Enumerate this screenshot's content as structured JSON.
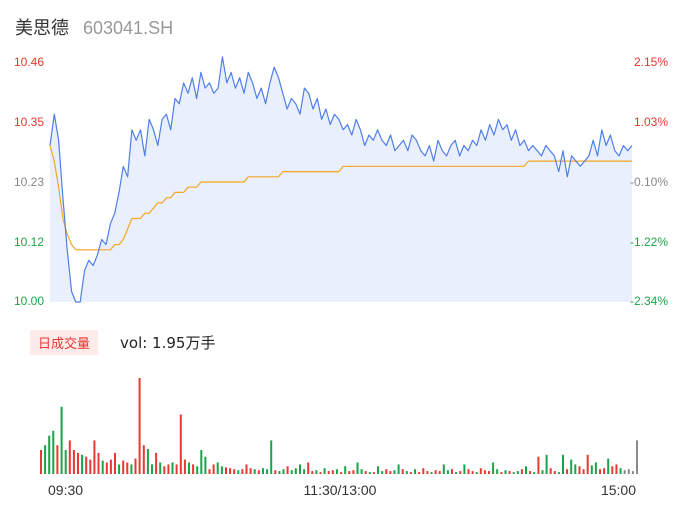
{
  "header": {
    "name": "美思德",
    "code": "603041.SH"
  },
  "volume_panel": {
    "badge": "日成交量",
    "vol_text": "vol: 1.95万手"
  },
  "colors": {
    "price_line": "#4f7fe8",
    "avg_line": "#f5a623",
    "up": "#e8382f",
    "down": "#1aa34a",
    "neutral": "#888888",
    "fill": "#e9effc"
  },
  "chart_data": [
    {
      "type": "line",
      "title": "",
      "y_ticks": [
        "10.46",
        "10.35",
        "10.23",
        "10.12",
        "10.00"
      ],
      "pct_ticks": [
        "2.15%",
        "1.03%",
        "-0.10%",
        "-1.22%",
        "-2.34%"
      ],
      "ylim": [
        10.0,
        10.46
      ],
      "x_ticks": [
        "09:30",
        "11:30/13:00",
        "15:00"
      ],
      "series": [
        {
          "role": "price",
          "values": [
            10.3,
            10.36,
            10.31,
            10.2,
            10.1,
            10.02,
            10.0,
            10.0,
            10.06,
            10.08,
            10.07,
            10.09,
            10.12,
            10.11,
            10.15,
            10.17,
            10.21,
            10.26,
            10.24,
            10.33,
            10.31,
            10.33,
            10.28,
            10.35,
            10.33,
            10.3,
            10.35,
            10.36,
            10.33,
            10.39,
            10.38,
            10.42,
            10.4,
            10.43,
            10.39,
            10.44,
            10.41,
            10.42,
            10.4,
            10.41,
            10.47,
            10.42,
            10.44,
            10.41,
            10.43,
            10.4,
            10.44,
            10.42,
            10.39,
            10.41,
            10.38,
            10.42,
            10.45,
            10.43,
            10.4,
            10.37,
            10.39,
            10.38,
            10.36,
            10.41,
            10.4,
            10.37,
            10.39,
            10.35,
            10.37,
            10.34,
            10.36,
            10.35,
            10.33,
            10.34,
            10.32,
            10.35,
            10.33,
            10.3,
            10.32,
            10.31,
            10.33,
            10.31,
            10.3,
            10.32,
            10.29,
            10.3,
            10.31,
            10.29,
            10.32,
            10.31,
            10.29,
            10.28,
            10.3,
            10.27,
            10.31,
            10.29,
            10.28,
            10.3,
            10.31,
            10.28,
            10.3,
            10.29,
            10.31,
            10.3,
            10.33,
            10.31,
            10.34,
            10.32,
            10.35,
            10.33,
            10.34,
            10.31,
            10.33,
            10.3,
            10.31,
            10.29,
            10.3,
            10.29,
            10.28,
            10.3,
            10.29,
            10.28,
            10.25,
            10.29,
            10.24,
            10.28,
            10.27,
            10.26,
            10.27,
            10.28,
            10.31,
            10.28,
            10.33,
            10.3,
            10.32,
            10.29,
            10.28,
            10.3,
            10.29,
            10.3
          ]
        },
        {
          "role": "average",
          "values": [
            10.3,
            10.27,
            10.22,
            10.16,
            10.13,
            10.11,
            10.1,
            10.1,
            10.1,
            10.1,
            10.1,
            10.1,
            10.1,
            10.1,
            10.1,
            10.11,
            10.11,
            10.12,
            10.14,
            10.16,
            10.16,
            10.16,
            10.17,
            10.17,
            10.18,
            10.19,
            10.19,
            10.2,
            10.2,
            10.21,
            10.21,
            10.21,
            10.22,
            10.22,
            10.22,
            10.23,
            10.23,
            10.23,
            10.23,
            10.23,
            10.23,
            10.23,
            10.23,
            10.23,
            10.23,
            10.23,
            10.24,
            10.24,
            10.24,
            10.24,
            10.24,
            10.24,
            10.24,
            10.24,
            10.25,
            10.25,
            10.25,
            10.25,
            10.25,
            10.25,
            10.25,
            10.25,
            10.25,
            10.25,
            10.25,
            10.25,
            10.25,
            10.25,
            10.26,
            10.26,
            10.26,
            10.26,
            10.26,
            10.26,
            10.26,
            10.26,
            10.26,
            10.26,
            10.26,
            10.26,
            10.26,
            10.26,
            10.26,
            10.26,
            10.26,
            10.26,
            10.26,
            10.26,
            10.26,
            10.26,
            10.26,
            10.26,
            10.26,
            10.26,
            10.26,
            10.26,
            10.26,
            10.26,
            10.26,
            10.26,
            10.26,
            10.26,
            10.26,
            10.26,
            10.26,
            10.26,
            10.26,
            10.26,
            10.26,
            10.26,
            10.26,
            10.27,
            10.27,
            10.27,
            10.27,
            10.27,
            10.27,
            10.27,
            10.27,
            10.27,
            10.27,
            10.27,
            10.27,
            10.27,
            10.27,
            10.27,
            10.27,
            10.27,
            10.27,
            10.27,
            10.27,
            10.27,
            10.27,
            10.27,
            10.27,
            10.27
          ]
        }
      ]
    },
    {
      "type": "bar",
      "title": "",
      "values": [
        0.25,
        0.3,
        0.4,
        0.45,
        0.3,
        0.7,
        0.25,
        0.35,
        0.25,
        0.22,
        0.2,
        0.18,
        0.15,
        0.35,
        0.22,
        0.14,
        0.12,
        0.15,
        0.22,
        0.1,
        0.14,
        0.12,
        0.1,
        0.16,
        1.0,
        0.3,
        0.26,
        0.1,
        0.22,
        0.12,
        0.08,
        0.1,
        0.12,
        0.1,
        0.62,
        0.15,
        0.12,
        0.1,
        0.08,
        0.25,
        0.18,
        0.05,
        0.1,
        0.12,
        0.08,
        0.07,
        0.06,
        0.05,
        0.04,
        0.05,
        0.1,
        0.06,
        0.05,
        0.04,
        0.06,
        0.05,
        0.35,
        0.04,
        0.03,
        0.05,
        0.08,
        0.04,
        0.06,
        0.1,
        0.05,
        0.12,
        0.03,
        0.04,
        0.02,
        0.06,
        0.03,
        0.04,
        0.05,
        0.02,
        0.08,
        0.03,
        0.04,
        0.12,
        0.05,
        0.03,
        0.02,
        0.02,
        0.08,
        0.03,
        0.05,
        0.03,
        0.04,
        0.1,
        0.05,
        0.03,
        0.02,
        0.05,
        0.02,
        0.06,
        0.03,
        0.02,
        0.04,
        0.03,
        0.1,
        0.04,
        0.05,
        0.02,
        0.03,
        0.1,
        0.05,
        0.03,
        0.02,
        0.06,
        0.04,
        0.03,
        0.12,
        0.05,
        0.02,
        0.04,
        0.03,
        0.02,
        0.03,
        0.05,
        0.08,
        0.03,
        0.02,
        0.18,
        0.04,
        0.2,
        0.06,
        0.03,
        0.02,
        0.2,
        0.05,
        0.15,
        0.1,
        0.08,
        0.05,
        0.2,
        0.09,
        0.12,
        0.05,
        0.06,
        0.16,
        0.08,
        0.1,
        0.06,
        0.04,
        0.05,
        0.03,
        0.35
      ],
      "colors": [
        "up",
        "down",
        "down",
        "down",
        "up",
        "down",
        "down",
        "up",
        "up",
        "up",
        "down",
        "up",
        "up",
        "up",
        "up",
        "down",
        "up",
        "up",
        "up",
        "down",
        "up",
        "up",
        "down",
        "up",
        "up",
        "up",
        "down",
        "down",
        "up",
        "down",
        "up",
        "up",
        "down",
        "up",
        "up",
        "up",
        "down",
        "up",
        "down",
        "down",
        "down",
        "up",
        "up",
        "down",
        "down",
        "up",
        "up",
        "up",
        "down",
        "up",
        "up",
        "up",
        "down",
        "up",
        "down",
        "down",
        "down",
        "up",
        "down",
        "down",
        "up",
        "down",
        "down",
        "down",
        "down",
        "up",
        "up",
        "down",
        "up",
        "down",
        "up",
        "up",
        "down",
        "up",
        "down",
        "up",
        "up",
        "down",
        "down",
        "up",
        "down",
        "up",
        "down",
        "down",
        "up",
        "up",
        "down",
        "down",
        "up",
        "down",
        "up",
        "down",
        "up",
        "up",
        "up",
        "down",
        "up",
        "up",
        "down",
        "down",
        "up",
        "down",
        "up",
        "down",
        "up",
        "up",
        "down",
        "up",
        "up",
        "up",
        "down",
        "down",
        "up",
        "down",
        "up",
        "down",
        "down",
        "up",
        "down",
        "up",
        "down",
        "up",
        "down",
        "down",
        "up",
        "up",
        "down",
        "down",
        "up",
        "down",
        "down",
        "up",
        "up",
        "up",
        "down",
        "down",
        "up",
        "up",
        "down",
        "up",
        "up",
        "down",
        "neutral"
      ]
    }
  ]
}
